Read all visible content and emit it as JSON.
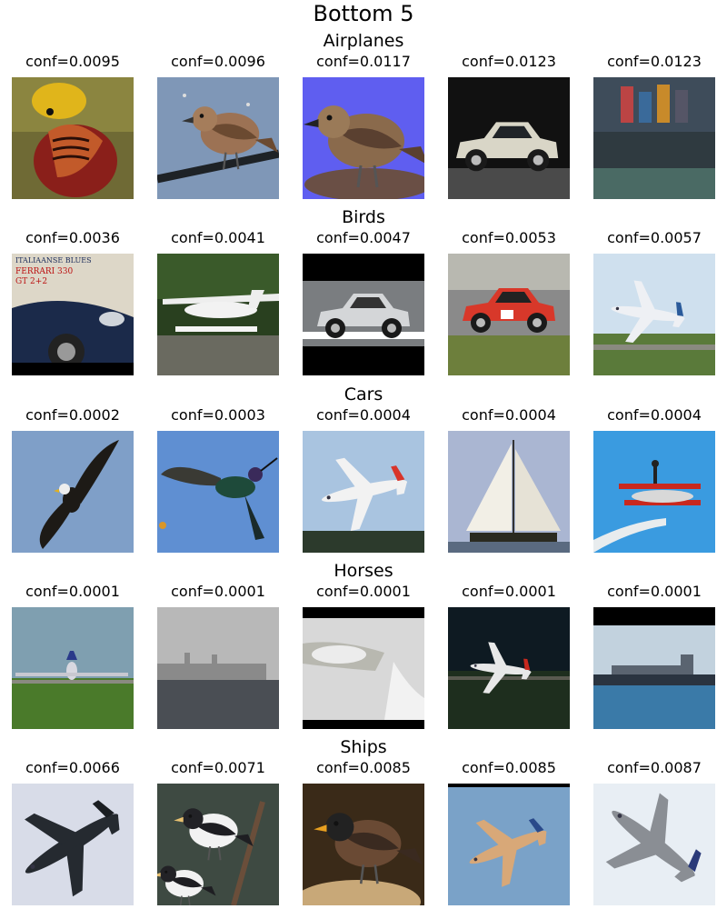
{
  "chart_data": {
    "type": "image-grid",
    "title": "Bottom 5",
    "rows": [
      {
        "class": "Airplanes",
        "items": [
          {
            "label": "conf=0.0095",
            "conf": 0.0095,
            "depicts": "golden-pheasant"
          },
          {
            "label": "conf=0.0096",
            "conf": 0.0096,
            "depicts": "sparrow-on-perch"
          },
          {
            "label": "conf=0.0117",
            "conf": 0.0117,
            "depicts": "wren-on-blue"
          },
          {
            "label": "conf=0.0123",
            "conf": 0.0123,
            "depicts": "small-white-car"
          },
          {
            "label": "conf=0.0123",
            "conf": 0.0123,
            "depicts": "cargo-ship-dock"
          }
        ]
      },
      {
        "class": "Birds",
        "items": [
          {
            "label": "conf=0.0036",
            "conf": 0.0036,
            "depicts": "ferrari-poster",
            "poster_text": [
              "ITALIAANSE BLUES",
              "FERRARI 330",
              "GT 2+2"
            ]
          },
          {
            "label": "conf=0.0041",
            "conf": 0.0041,
            "depicts": "seaplane"
          },
          {
            "label": "conf=0.0047",
            "conf": 0.0047,
            "depicts": "silver-roadster"
          },
          {
            "label": "conf=0.0053",
            "conf": 0.0053,
            "depicts": "race-car"
          },
          {
            "label": "conf=0.0057",
            "conf": 0.0057,
            "depicts": "airliner-takeoff"
          }
        ]
      },
      {
        "class": "Cars",
        "items": [
          {
            "label": "conf=0.0002",
            "conf": 0.0002,
            "depicts": "eagle-in-flight"
          },
          {
            "label": "conf=0.0003",
            "conf": 0.0003,
            "depicts": "hummingbird"
          },
          {
            "label": "conf=0.0004",
            "conf": 0.0004,
            "depicts": "turboprop-plane"
          },
          {
            "label": "conf=0.0004",
            "conf": 0.0004,
            "depicts": "sailboat"
          },
          {
            "label": "conf=0.0004",
            "conf": 0.0004,
            "depicts": "biplane-wingwalker"
          }
        ]
      },
      {
        "class": "Horses",
        "items": [
          {
            "label": "conf=0.0001",
            "conf": 0.0001,
            "depicts": "jumbo-jet-runway"
          },
          {
            "label": "conf=0.0001",
            "conf": 0.0001,
            "depicts": "foggy-ship"
          },
          {
            "label": "conf=0.0001",
            "conf": 0.0001,
            "depicts": "car-headlight"
          },
          {
            "label": "conf=0.0001",
            "conf": 0.0001,
            "depicts": "jet-landing"
          },
          {
            "label": "conf=0.0001",
            "conf": 0.0001,
            "depicts": "tanker-at-sea"
          }
        ]
      },
      {
        "class": "Ships",
        "items": [
          {
            "label": "conf=0.0066",
            "conf": 0.0066,
            "depicts": "bomber-plane"
          },
          {
            "label": "conf=0.0071",
            "conf": 0.0071,
            "depicts": "finches"
          },
          {
            "label": "conf=0.0085",
            "conf": 0.0085,
            "depicts": "myna-bird"
          },
          {
            "label": "conf=0.0085",
            "conf": 0.0085,
            "depicts": "airliner-flying"
          },
          {
            "label": "conf=0.0087",
            "conf": 0.0087,
            "depicts": "p51-fighter"
          }
        ]
      }
    ]
  }
}
